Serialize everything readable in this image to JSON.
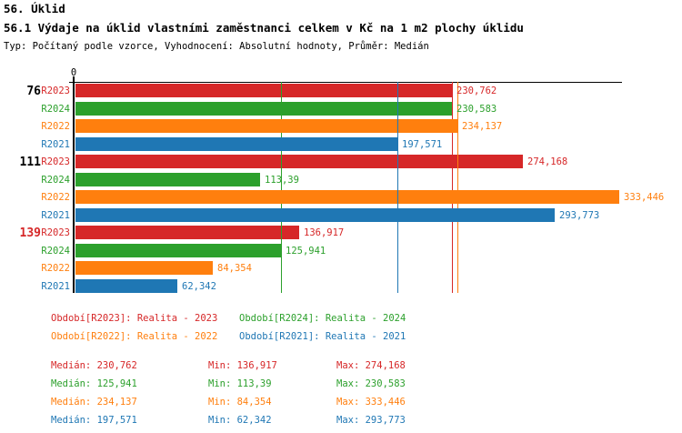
{
  "header": {
    "title": "56. Úklid",
    "subtitle": "56.1 Výdaje na úklid vlastními zaměstnanci celkem v Kč na 1 m2 plochy úklidu",
    "meta": "Typ: Počítaný podle vzorce, Vyhodnocení: Absolutní hodnoty, Průměr: Medián"
  },
  "colors": {
    "red": "#d62728",
    "green": "#2ca02c",
    "orange": "#ff7f0e",
    "blue": "#1f77b4",
    "axis": "#000000"
  },
  "chart_data": {
    "type": "bar",
    "orientation": "horizontal",
    "value_axis": {
      "origin_label": "0",
      "min": 0,
      "max_rendered": 340,
      "grid": false
    },
    "series_order": [
      {
        "id": "R2023",
        "label": "R2023",
        "color": "#d62728",
        "legend": "Realita - 2023"
      },
      {
        "id": "R2024",
        "label": "R2024",
        "color": "#2ca02c",
        "legend": "Realita - 2024"
      },
      {
        "id": "R2022",
        "label": "R2022",
        "color": "#ff7f0e",
        "legend": "Realita - 2022"
      },
      {
        "id": "R2021",
        "label": "R2021",
        "color": "#1f77b4",
        "legend": "Realita - 2021"
      }
    ],
    "groups": [
      {
        "label": "76",
        "label_color": "#000000",
        "values": [
          230.762,
          230.583,
          234.137,
          197.571
        ],
        "displays": [
          "230,762",
          "230,583",
          "234,137",
          "197,571"
        ]
      },
      {
        "label": "111",
        "label_color": "#000000",
        "values": [
          274.168,
          113.39,
          333.446,
          293.773
        ],
        "displays": [
          "274,168",
          "113,39",
          "333,446",
          "293,773"
        ]
      },
      {
        "label": "139",
        "label_color": "#d62728",
        "values": [
          136.917,
          125.941,
          84.354,
          62.342
        ],
        "displays": [
          "136,917",
          "125,941",
          "84,354",
          "62,342"
        ]
      }
    ],
    "median_lines": [
      {
        "series": "R2023",
        "value": 230.762
      },
      {
        "series": "R2024",
        "value": 125.941
      },
      {
        "series": "R2022",
        "value": 234.137
      },
      {
        "series": "R2021",
        "value": 197.571
      }
    ]
  },
  "legend": {
    "items": [
      {
        "text": "Období[R2023]: Realita - 2023",
        "color": "#d62728"
      },
      {
        "text": "Období[R2024]: Realita - 2024",
        "color": "#2ca02c"
      },
      {
        "text": "Období[R2022]: Realita - 2022",
        "color": "#ff7f0e"
      },
      {
        "text": "Období[R2021]: Realita - 2021",
        "color": "#1f77b4"
      }
    ]
  },
  "stats": {
    "rows": [
      {
        "color": "#d62728",
        "median": "Medián: 230,762",
        "min": "Min: 136,917",
        "max": "Max: 274,168"
      },
      {
        "color": "#2ca02c",
        "median": "Medián: 125,941",
        "min": "Min: 113,39",
        "max": "Max: 230,583"
      },
      {
        "color": "#ff7f0e",
        "median": "Medián: 234,137",
        "min": "Min: 84,354",
        "max": "Max: 333,446"
      },
      {
        "color": "#1f77b4",
        "median": "Medián: 197,571",
        "min": "Min: 62,342",
        "max": "Max: 293,773"
      }
    ]
  }
}
